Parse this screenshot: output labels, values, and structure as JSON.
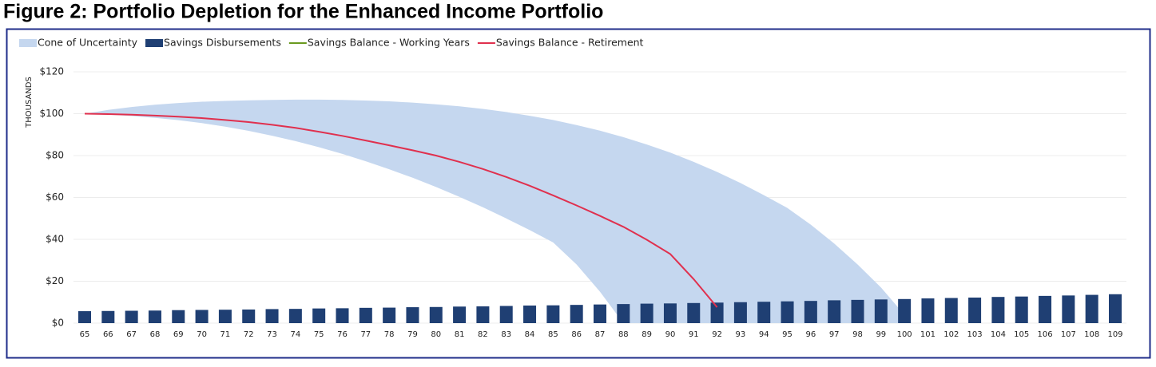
{
  "chart_data": {
    "type": "bar-line-area",
    "title": "Figure 2: Portfolio Depletion for the Enhanced Income Portfolio",
    "y_label": "THOUSANDS",
    "categories": [
      "65",
      "66",
      "67",
      "68",
      "69",
      "70",
      "71",
      "72",
      "73",
      "74",
      "75",
      "76",
      "77",
      "78",
      "79",
      "80",
      "81",
      "82",
      "83",
      "84",
      "85",
      "86",
      "87",
      "88",
      "89",
      "90",
      "91",
      "92",
      "93",
      "94",
      "95",
      "96",
      "97",
      "98",
      "99",
      "100",
      "101",
      "102",
      "103",
      "104",
      "105",
      "106",
      "107",
      "108",
      "109"
    ],
    "ylim": [
      0,
      120
    ],
    "yticks": [
      {
        "value": 0,
        "label": "$0"
      },
      {
        "value": 20,
        "label": "$20"
      },
      {
        "value": 40,
        "label": "$40"
      },
      {
        "value": 60,
        "label": "$60"
      },
      {
        "value": 80,
        "label": "$80"
      },
      {
        "value": 100,
        "label": "$100"
      },
      {
        "value": 120,
        "label": "$120"
      }
    ],
    "grid": true,
    "series": [
      {
        "name": "Cone of Uncertainty",
        "kind": "area",
        "color": "#c5d7ef",
        "values": [
          100,
          101.8,
          103.2,
          104.3,
          105.1,
          105.7,
          106.1,
          106.4,
          106.6,
          106.7,
          106.7,
          106.6,
          106.3,
          105.9,
          105.3,
          104.5,
          103.5,
          102.3,
          100.8,
          99.0,
          97.0,
          94.6,
          91.9,
          88.8,
          85.3,
          81.4,
          77.0,
          72.2,
          66.9,
          61.1,
          55.0,
          47.0,
          38.0,
          28.0,
          17.0,
          4.0,
          null,
          null,
          null,
          null,
          null,
          null,
          null,
          null,
          null
        ],
        "lower": [
          100,
          99.5,
          98.9,
          98.0,
          96.9,
          95.5,
          93.8,
          91.8,
          89.5,
          86.9,
          84.0,
          80.8,
          77.3,
          73.5,
          69.4,
          65.0,
          60.3,
          55.3,
          50.0,
          44.4,
          38.5,
          28.0,
          15.0,
          0,
          0,
          0,
          0,
          0,
          0,
          0,
          0,
          0,
          0,
          0,
          0,
          0,
          null,
          null,
          null,
          null,
          null,
          null,
          null,
          null,
          null
        ]
      },
      {
        "name": "Savings Disbursements",
        "kind": "bar",
        "color": "#1f3f73",
        "values": [
          5.7,
          5.8,
          5.9,
          6.0,
          6.2,
          6.3,
          6.4,
          6.5,
          6.7,
          6.8,
          7.0,
          7.1,
          7.3,
          7.4,
          7.6,
          7.7,
          7.9,
          8.0,
          8.2,
          8.4,
          8.5,
          8.7,
          8.9,
          9.1,
          9.3,
          9.4,
          9.6,
          9.8,
          10.0,
          10.2,
          10.4,
          10.6,
          10.9,
          11.1,
          11.3,
          11.5,
          11.8,
          12.0,
          12.2,
          12.5,
          12.7,
          13.0,
          13.2,
          13.5,
          13.8
        ]
      },
      {
        "name": "Savings Balance - Working Years",
        "kind": "line",
        "color": "#6a9a1f",
        "values": [
          null,
          null,
          null,
          null,
          null,
          null,
          null,
          null,
          null,
          null,
          null,
          null,
          null,
          null,
          null,
          null,
          null,
          null,
          null,
          null,
          null,
          null,
          null,
          null,
          null,
          null,
          null,
          null,
          null,
          null,
          null,
          null,
          null,
          null,
          null,
          null,
          null,
          null,
          null,
          null,
          null,
          null,
          null,
          null,
          null
        ]
      },
      {
        "name": "Savings Balance - Retirement",
        "kind": "line",
        "color": "#e0304e",
        "values": [
          100,
          99.8,
          99.5,
          99.1,
          98.6,
          97.9,
          97.0,
          96.0,
          94.7,
          93.2,
          91.4,
          89.4,
          87.2,
          84.9,
          82.5,
          80.0,
          77.0,
          73.6,
          69.8,
          65.6,
          61.0,
          56.2,
          51.2,
          46.0,
          39.8,
          33.0,
          21.0,
          7.6,
          null,
          null,
          null,
          null,
          null,
          null,
          null,
          null,
          null,
          null,
          null,
          null,
          null,
          null,
          null,
          null,
          null
        ]
      }
    ]
  }
}
